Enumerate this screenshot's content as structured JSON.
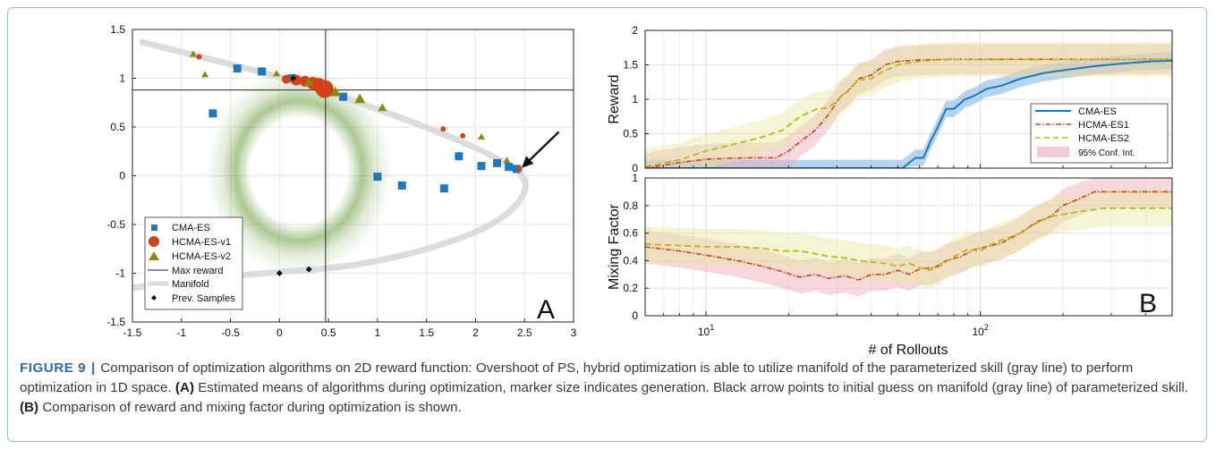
{
  "figure": {
    "label": "FIGURE 9",
    "separator": "|",
    "caption_intro": "Comparison of optimization algorithms on 2D reward function: Overshoot of PS, hybrid optimization is able to utilize manifold of the parameterized skill (gray line) to perform optimization in 1D space.",
    "tag_a": "(A)",
    "text_a": "Estimated means of algorithms during optimization, marker size indicates generation. Black arrow points to initial guess on manifold (gray line) of parameterized skill.",
    "tag_b": "(B)",
    "text_b": "Comparison of reward and mixing factor during optimization is shown."
  },
  "colors": {
    "cma": "#1f77bf",
    "hcma1": "#d0421b",
    "hcma2": "#8a8a10",
    "hcma2_line": "#b8b818",
    "manifold": "#dcdcdc",
    "ring": "#6a9a3a"
  },
  "chart_data": [
    {
      "type": "scatter",
      "panel_label": "A",
      "xlim": [
        -1.5,
        3
      ],
      "ylim": [
        -1.5,
        1.5
      ],
      "xticks": [
        -1.5,
        -1,
        -0.5,
        0,
        0.5,
        1,
        1.5,
        2,
        2.5,
        3
      ],
      "yticks": [
        -1.5,
        -1,
        -0.5,
        0,
        0.5,
        1,
        1.5
      ],
      "xtick_labels": [
        "-1.5",
        "-1",
        "-0.5",
        "0",
        "0.5",
        "1",
        "1.5",
        "2",
        "2.5",
        "3"
      ],
      "ytick_labels": [
        "-1.5",
        "-1",
        "-0.5",
        "0",
        "0.5",
        "1",
        "1.5"
      ],
      "grid": true,
      "max_reward": {
        "x": 0.47,
        "y": 0.88
      },
      "ring": {
        "cx": 0.2,
        "cy": 0.05,
        "rx": 0.95,
        "ry": 1.05
      },
      "manifold": [
        [
          -1.4,
          1.37
        ],
        [
          -0.6,
          1.17
        ],
        [
          0.2,
          0.96
        ],
        [
          0.9,
          0.72
        ],
        [
          1.6,
          0.46
        ],
        [
          2.2,
          0.2
        ],
        [
          2.55,
          -0.02
        ],
        [
          2.45,
          -0.3
        ],
        [
          2.1,
          -0.55
        ],
        [
          1.5,
          -0.76
        ],
        [
          0.9,
          -0.9
        ],
        [
          0.4,
          -0.96
        ],
        [
          -0.2,
          -1.0
        ],
        [
          -1.0,
          -1.08
        ],
        [
          -1.5,
          -1.15
        ]
      ],
      "series": [
        {
          "name": "CMA-ES",
          "marker": "square",
          "points": [
            [
              -0.68,
              0.64
            ],
            [
              -0.43,
              1.1
            ],
            [
              -0.18,
              1.07
            ],
            [
              0.65,
              0.81
            ],
            [
              1.0,
              -0.01
            ],
            [
              1.25,
              -0.1
            ],
            [
              1.68,
              -0.13
            ],
            [
              1.83,
              0.2
            ],
            [
              2.06,
              0.1
            ],
            [
              2.22,
              0.13
            ],
            [
              2.34,
              0.09
            ],
            [
              2.42,
              0.07
            ],
            [
              0.13,
              1.0
            ]
          ]
        },
        {
          "name": "HCMA-ES-v1",
          "marker": "circle",
          "points": [
            [
              -0.82,
              1.22
            ],
            [
              0.07,
              0.99
            ],
            [
              0.17,
              0.98
            ],
            [
              0.26,
              0.97
            ],
            [
              0.34,
              0.95
            ],
            [
              0.4,
              0.93
            ],
            [
              0.46,
              0.89
            ],
            [
              1.67,
              0.48
            ],
            [
              1.87,
              0.41
            ],
            [
              2.45,
              0.07
            ]
          ],
          "sizes": [
            3,
            5,
            6,
            6,
            7,
            8,
            10,
            3,
            3,
            3
          ]
        },
        {
          "name": "HCMA-ES-v2",
          "marker": "triangle",
          "points": [
            [
              -0.88,
              1.25
            ],
            [
              -0.76,
              1.04
            ],
            [
              -0.03,
              1.05
            ],
            [
              0.3,
              0.96
            ],
            [
              0.57,
              0.86
            ],
            [
              0.82,
              0.79
            ],
            [
              1.05,
              0.7
            ],
            [
              2.06,
              0.4
            ],
            [
              2.32,
              0.16
            ]
          ],
          "sizes": [
            4,
            4,
            4,
            5,
            6,
            6,
            5,
            4,
            4
          ]
        },
        {
          "name": "Prev. Samples",
          "marker": "diamond",
          "points": [
            [
              0.0,
              -1.0
            ],
            [
              0.3,
              -0.96
            ],
            [
              0.14,
              1.0
            ]
          ]
        }
      ],
      "arrow": {
        "from": [
          2.85,
          0.45
        ],
        "to": [
          2.47,
          0.08
        ]
      },
      "legend": [
        "CMA-ES",
        "HCMA-ES-v1",
        "HCMA-ES-v2",
        "Max reward",
        "Manifold",
        "Prev. Samples"
      ],
      "legend_position": "bottom-left"
    },
    {
      "type": "line",
      "panel_label": "B",
      "xscale": "log",
      "xlim": [
        6,
        500
      ],
      "xtick_labels": [
        "10^1",
        "10^2"
      ],
      "xlabel": "# of Rollouts",
      "subplots": [
        {
          "ylabel": "Reward",
          "ylim": [
            0,
            2
          ],
          "yticks": [
            0,
            0.5,
            1,
            1.5,
            2
          ],
          "ytick_labels": [
            "0",
            "0.5",
            "1",
            "1.5",
            "2"
          ],
          "legend": [
            "CMA-ES",
            "HCMA-ES1",
            "HCMA-ES2",
            "95% Conf. Int."
          ],
          "legend_position": "right",
          "series": [
            {
              "name": "CMA-ES",
              "x": [
                6,
                48,
                52,
                58,
                62,
                66,
                70,
                75,
                80,
                88,
                95,
                105,
                120,
                140,
                170,
                200,
                260,
                330,
                420,
                500
              ],
              "y": [
                0,
                0,
                0,
                0.15,
                0.15,
                0.4,
                0.6,
                0.86,
                0.86,
                1.0,
                1.05,
                1.15,
                1.2,
                1.3,
                1.38,
                1.42,
                1.48,
                1.52,
                1.55,
                1.56
              ],
              "band": 0.12
            },
            {
              "name": "HCMA-ES1",
              "x": [
                6,
                8,
                10,
                14,
                18,
                20,
                22,
                25,
                28,
                31,
                33,
                36,
                40,
                45,
                50,
                60,
                75,
                100,
                150,
                250,
                500
              ],
              "y": [
                0,
                0.08,
                0.13,
                0.15,
                0.15,
                0.25,
                0.38,
                0.55,
                0.78,
                1.05,
                1.12,
                1.3,
                1.35,
                1.5,
                1.55,
                1.57,
                1.58,
                1.58,
                1.58,
                1.58,
                1.58
              ],
              "band": 0.22
            },
            {
              "name": "HCMA-ES2",
              "x": [
                6,
                8,
                10,
                13,
                16,
                19,
                22,
                25,
                28,
                32,
                36,
                40,
                44,
                50,
                60,
                70,
                80,
                100,
                150,
                250,
                500
              ],
              "y": [
                0.02,
                0.12,
                0.25,
                0.36,
                0.45,
                0.55,
                0.75,
                0.85,
                0.88,
                1.08,
                1.28,
                1.3,
                1.4,
                1.5,
                1.55,
                1.57,
                1.58,
                1.58,
                1.58,
                1.58,
                1.58
              ],
              "band": 0.25
            }
          ]
        },
        {
          "ylabel": "Mixing Factor",
          "ylim": [
            0,
            1
          ],
          "yticks": [
            0,
            0.2,
            0.4,
            0.6,
            0.8,
            1
          ],
          "ytick_labels": [
            "0",
            "0.2",
            "0.4",
            "0.6",
            "0.8",
            "1"
          ],
          "series": [
            {
              "name": "HCMA-ES1",
              "x": [
                6,
                8,
                10,
                13,
                16,
                19,
                22,
                25,
                28,
                32,
                36,
                40,
                45,
                50,
                55,
                60,
                68,
                75,
                85,
                95,
                105,
                120,
                140,
                160,
                180,
                200,
                230,
                260,
                300,
                500
              ],
              "y": [
                0.5,
                0.47,
                0.44,
                0.4,
                0.36,
                0.32,
                0.28,
                0.3,
                0.27,
                0.29,
                0.26,
                0.3,
                0.3,
                0.33,
                0.3,
                0.34,
                0.35,
                0.4,
                0.43,
                0.48,
                0.5,
                0.53,
                0.6,
                0.68,
                0.72,
                0.8,
                0.85,
                0.9,
                0.9,
                0.9
              ],
              "band": 0.12
            },
            {
              "name": "HCMA-ES2",
              "x": [
                6,
                8,
                10,
                13,
                16,
                19,
                22,
                25,
                28,
                32,
                36,
                40,
                45,
                50,
                55,
                60,
                65,
                70,
                80,
                90,
                100,
                110,
                120,
                140,
                160,
                180,
                220,
                280,
                500
              ],
              "y": [
                0.52,
                0.51,
                0.5,
                0.5,
                0.49,
                0.47,
                0.47,
                0.45,
                0.43,
                0.42,
                0.4,
                0.39,
                0.38,
                0.36,
                0.38,
                0.35,
                0.33,
                0.35,
                0.43,
                0.48,
                0.47,
                0.52,
                0.55,
                0.6,
                0.67,
                0.72,
                0.75,
                0.78,
                0.78
              ],
              "band": 0.13
            }
          ]
        }
      ]
    }
  ]
}
